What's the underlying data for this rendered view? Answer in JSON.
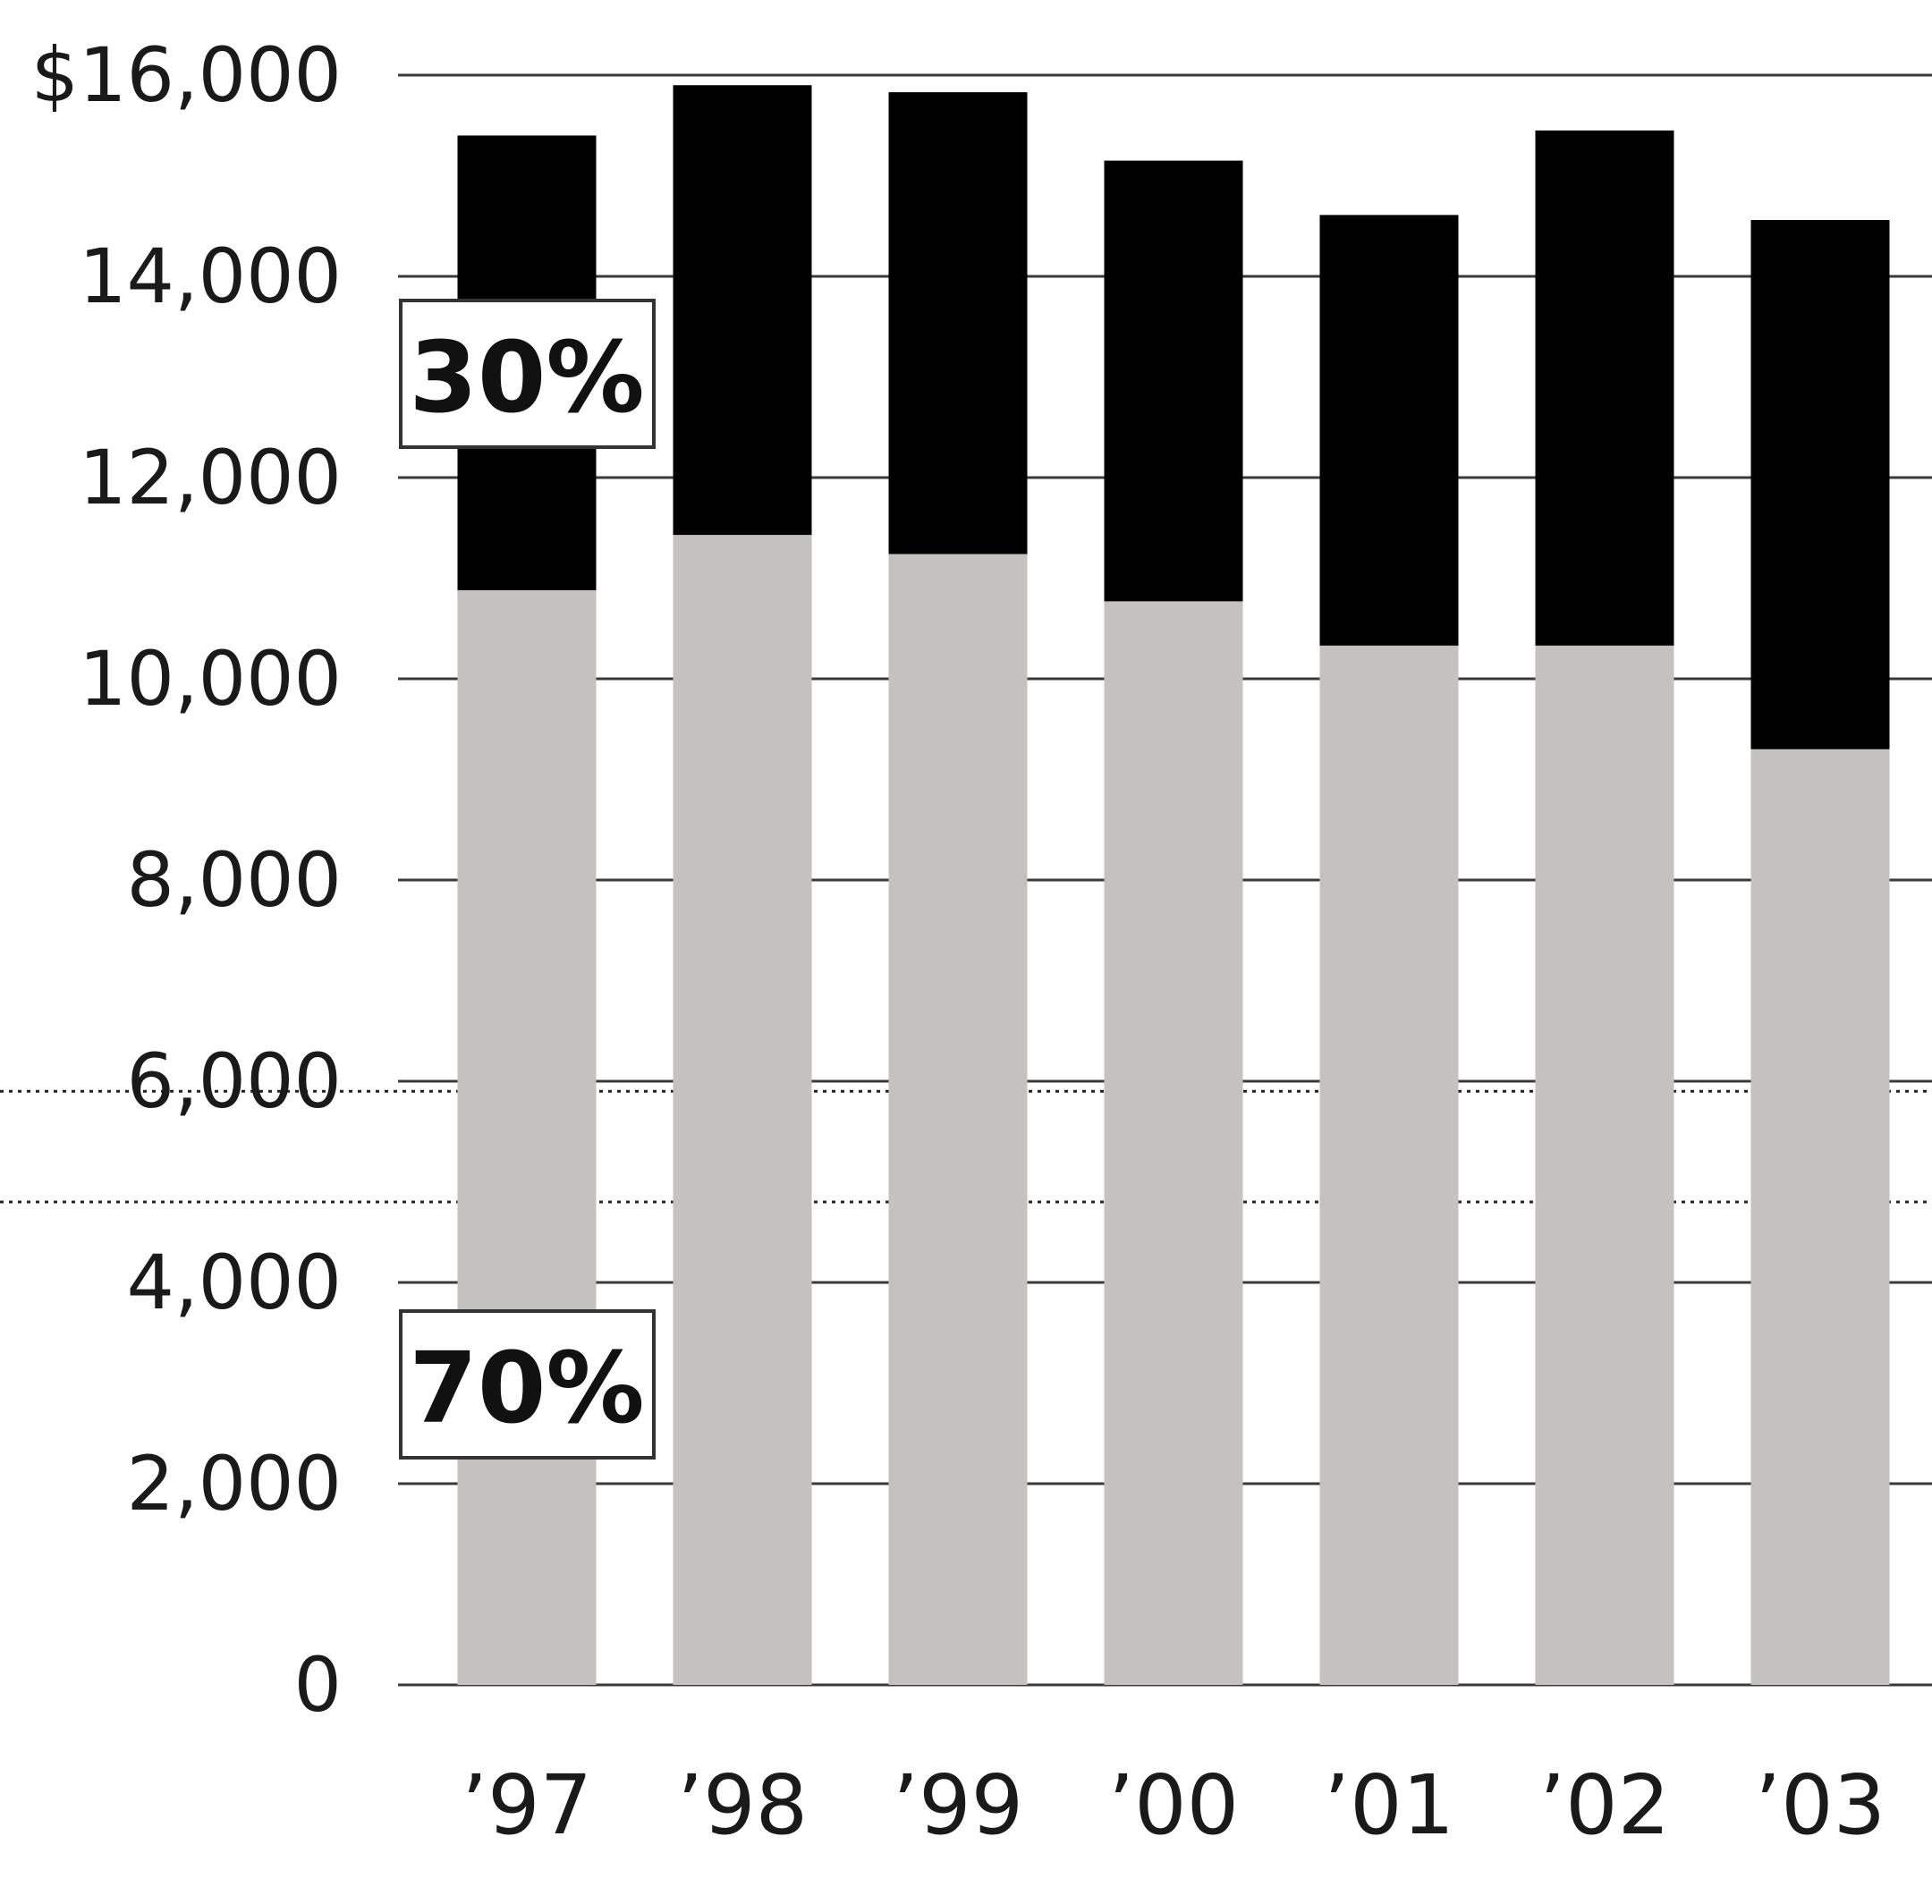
{
  "chart_data": {
    "type": "bar",
    "stacked": true,
    "categories": [
      "’97",
      "’98",
      "’99",
      "’00",
      "’01",
      "’02",
      "’03"
    ],
    "series": [
      {
        "color": "#c3c2be",
        "values": [
          10880,
          11430,
          11240,
          10770,
          10330,
          10330,
          9300
        ]
      },
      {
        "color": "#000000",
        "values": [
          4520,
          4470,
          4590,
          4380,
          4280,
          5120,
          5260
        ]
      }
    ],
    "y_ticks": [
      "$16,000",
      "14,000",
      "12,000",
      "10,000",
      "8,000",
      "6,000",
      "4,000",
      "2,000",
      "0"
    ],
    "ylim": [
      0,
      16000
    ],
    "grid": true,
    "annotations": {
      "top_share": "30%",
      "bottom_share": "70%"
    },
    "reference_lines": [
      5900,
      4800
    ]
  }
}
